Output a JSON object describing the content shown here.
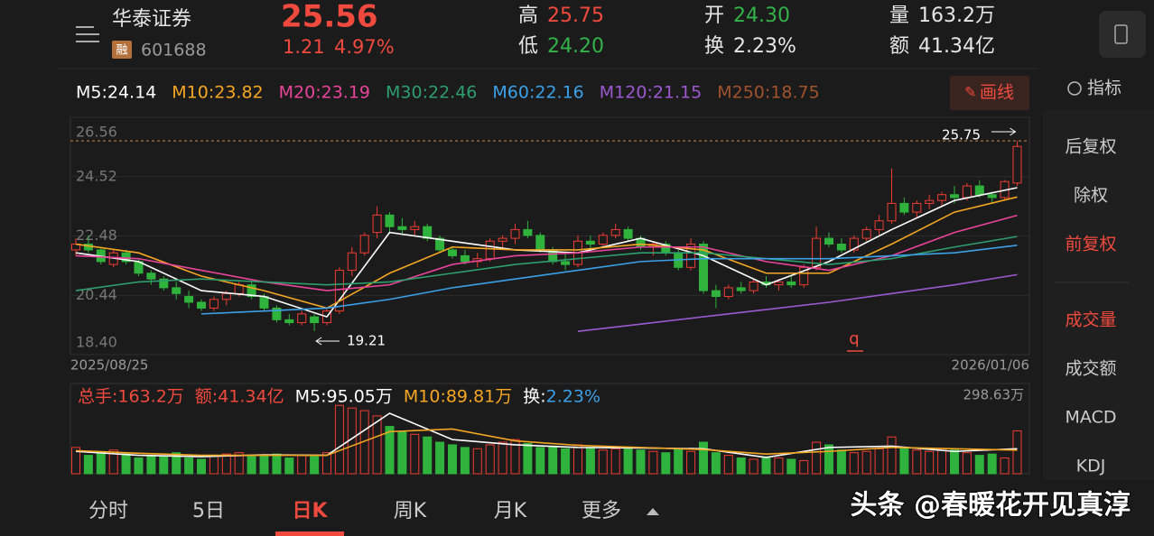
{
  "header": {
    "name": "华泰证券",
    "badge": "融",
    "code": "601688",
    "price": "25.56",
    "change": "1.21",
    "change_pct": "4.97%",
    "stats": [
      {
        "label": "高",
        "value": "25.75",
        "color": "#f04a3e"
      },
      {
        "label": "低",
        "value": "24.20",
        "color": "#33b24a"
      },
      {
        "label": "开",
        "value": "24.30",
        "color": "#33b24a"
      },
      {
        "label": "换",
        "value": "2.23%",
        "color": "#e6e6e6"
      },
      {
        "label": "量",
        "value": "163.2万",
        "color": "#e6e6e6"
      },
      {
        "label": "额",
        "value": "41.34亿",
        "color": "#e6e6e6"
      }
    ]
  },
  "toolbar": {
    "draw_button": "画线",
    "indicator": "指标"
  },
  "sidebar": [
    {
      "label": "后复权",
      "active": false
    },
    {
      "label": "除权",
      "active": false
    },
    {
      "label": "前复权",
      "active": true
    },
    {
      "label": "成交量",
      "active": true
    },
    {
      "label": "成交额",
      "active": false
    },
    {
      "label": "MACD",
      "active": false
    },
    {
      "label": "KDJ",
      "active": false
    }
  ],
  "tabs": [
    {
      "label": "分时",
      "active": false
    },
    {
      "label": "5日",
      "active": false
    },
    {
      "label": "日K",
      "active": true
    },
    {
      "label": "周K",
      "active": false
    },
    {
      "label": "月K",
      "active": false
    },
    {
      "label": "更多",
      "active": false
    }
  ],
  "watermark": "头条 @春暖花开见真淳",
  "chart_data": [
    {
      "type": "candlestick",
      "up_color": "#f03c32",
      "down_color": "#2fb33c",
      "legend_extra": [
        {
          "label": "M250:18.75",
          "color": "#a0522d"
        }
      ],
      "ylim": [
        18.4,
        26.56
      ],
      "yticks": [
        26.56,
        24.52,
        22.48,
        20.44,
        {
          "value": 18.4,
          "label": "18.40"
        }
      ],
      "x_labels": [
        "2025/08/25",
        "2026/01/06"
      ],
      "high_label": 25.75,
      "low_label": 19.21,
      "ohlc": [
        [
          22.0,
          22.4,
          21.8,
          22.2
        ],
        [
          22.2,
          22.5,
          21.9,
          22.0
        ],
        [
          22.0,
          22.1,
          21.5,
          21.6
        ],
        [
          21.5,
          22.0,
          21.4,
          21.9
        ],
        [
          21.9,
          22.0,
          21.5,
          21.6
        ],
        [
          21.6,
          21.7,
          21.1,
          21.2
        ],
        [
          21.2,
          21.3,
          20.8,
          21.0
        ],
        [
          21.0,
          21.1,
          20.6,
          20.7
        ],
        [
          20.7,
          20.9,
          20.3,
          20.5
        ],
        [
          20.4,
          20.6,
          20.0,
          20.2
        ],
        [
          20.2,
          20.3,
          19.9,
          20.0
        ],
        [
          20.0,
          20.4,
          19.9,
          20.3
        ],
        [
          20.3,
          20.6,
          20.1,
          20.5
        ],
        [
          20.5,
          20.9,
          20.4,
          20.8
        ],
        [
          20.8,
          20.9,
          20.3,
          20.4
        ],
        [
          20.4,
          20.5,
          19.9,
          20.0
        ],
        [
          20.0,
          20.1,
          19.5,
          19.6
        ],
        [
          19.6,
          19.8,
          19.4,
          19.5
        ],
        [
          19.5,
          19.9,
          19.4,
          19.8
        ],
        [
          19.7,
          19.8,
          19.21,
          19.5
        ],
        [
          19.5,
          20.0,
          19.4,
          19.9
        ],
        [
          19.9,
          21.4,
          19.8,
          21.3
        ],
        [
          21.3,
          22.1,
          21.1,
          21.9
        ],
        [
          21.9,
          22.6,
          21.8,
          22.5
        ],
        [
          22.6,
          23.5,
          22.4,
          23.2
        ],
        [
          23.2,
          23.3,
          22.6,
          22.8
        ],
        [
          22.8,
          23.1,
          22.5,
          22.7
        ],
        [
          22.7,
          23.0,
          22.5,
          22.8
        ],
        [
          22.8,
          22.9,
          22.3,
          22.4
        ],
        [
          22.4,
          22.5,
          21.9,
          22.0
        ],
        [
          22.0,
          22.1,
          21.7,
          21.8
        ],
        [
          21.8,
          22.0,
          21.5,
          21.6
        ],
        [
          21.6,
          21.9,
          21.4,
          21.7
        ],
        [
          21.7,
          22.4,
          21.6,
          22.3
        ],
        [
          22.3,
          22.5,
          22.0,
          22.4
        ],
        [
          22.4,
          22.9,
          22.2,
          22.7
        ],
        [
          22.7,
          23.0,
          22.4,
          22.5
        ],
        [
          22.5,
          22.6,
          21.9,
          22.0
        ],
        [
          22.0,
          22.1,
          21.5,
          21.6
        ],
        [
          21.6,
          21.9,
          21.3,
          21.5
        ],
        [
          21.5,
          22.5,
          21.4,
          22.3
        ],
        [
          22.3,
          22.5,
          22.0,
          22.2
        ],
        [
          22.2,
          22.6,
          22.1,
          22.5
        ],
        [
          22.5,
          22.9,
          22.4,
          22.7
        ],
        [
          22.7,
          22.8,
          22.3,
          22.4
        ],
        [
          22.4,
          22.5,
          22.0,
          22.1
        ],
        [
          22.1,
          22.3,
          21.8,
          22.2
        ],
        [
          22.2,
          22.3,
          21.8,
          21.9
        ],
        [
          21.9,
          22.0,
          21.3,
          21.4
        ],
        [
          21.4,
          22.4,
          21.3,
          22.2
        ],
        [
          22.2,
          22.3,
          20.5,
          20.6
        ],
        [
          20.6,
          20.8,
          20.0,
          20.4
        ],
        [
          20.4,
          20.8,
          20.3,
          20.7
        ],
        [
          20.7,
          20.9,
          20.5,
          20.6
        ],
        [
          20.6,
          21.0,
          20.5,
          20.9
        ],
        [
          20.9,
          21.1,
          20.7,
          20.8
        ],
        [
          20.8,
          21.0,
          20.6,
          20.9
        ],
        [
          20.9,
          21.1,
          20.7,
          20.8
        ],
        [
          20.8,
          21.5,
          20.7,
          21.4
        ],
        [
          21.4,
          22.8,
          21.3,
          22.4
        ],
        [
          22.4,
          22.6,
          22.1,
          22.2
        ],
        [
          22.2,
          22.4,
          21.9,
          22.0
        ],
        [
          22.0,
          22.5,
          21.9,
          22.4
        ],
        [
          22.4,
          22.8,
          22.3,
          22.7
        ],
        [
          22.7,
          23.2,
          22.5,
          23.0
        ],
        [
          23.0,
          24.8,
          22.9,
          23.6
        ],
        [
          23.6,
          23.8,
          23.2,
          23.3
        ],
        [
          23.3,
          23.7,
          23.1,
          23.6
        ],
        [
          23.6,
          23.9,
          23.4,
          23.7
        ],
        [
          23.7,
          24.0,
          23.5,
          23.9
        ],
        [
          23.9,
          24.2,
          23.6,
          23.8
        ],
        [
          23.8,
          24.3,
          23.7,
          24.2
        ],
        [
          24.2,
          24.4,
          23.8,
          23.9
        ],
        [
          23.9,
          24.0,
          23.6,
          23.8
        ],
        [
          23.8,
          24.4,
          23.7,
          24.35
        ],
        [
          24.3,
          25.75,
          24.2,
          25.56
        ]
      ],
      "series": [
        {
          "name": "M5:24.14",
          "color": "#ffffff",
          "x": [
            0,
            5,
            10,
            15,
            20,
            25,
            30,
            35,
            40,
            45,
            50,
            55,
            60,
            65,
            70,
            75
          ],
          "values": [
            21.9,
            21.6,
            20.6,
            20.4,
            19.7,
            22.6,
            22.3,
            22.0,
            21.9,
            22.4,
            21.8,
            20.8,
            21.6,
            22.7,
            23.7,
            24.14
          ]
        },
        {
          "name": "M10:23.82",
          "color": "#f5a623",
          "x": [
            0,
            5,
            10,
            15,
            20,
            25,
            30,
            35,
            40,
            45,
            50,
            55,
            60,
            65,
            70,
            75
          ],
          "values": [
            22.2,
            21.9,
            21.1,
            20.6,
            20.0,
            21.2,
            22.1,
            22.0,
            22.0,
            22.2,
            22.0,
            21.2,
            21.2,
            22.2,
            23.3,
            23.82
          ]
        },
        {
          "name": "M20:23.19",
          "color": "#e8459a",
          "x": [
            0,
            5,
            10,
            15,
            20,
            25,
            30,
            35,
            40,
            45,
            50,
            55,
            60,
            65,
            70,
            75
          ],
          "values": [
            21.8,
            21.7,
            21.3,
            20.9,
            20.6,
            20.8,
            21.5,
            21.8,
            21.9,
            22.1,
            22.1,
            21.6,
            21.3,
            21.8,
            22.6,
            23.19
          ]
        },
        {
          "name": "M30:22.46",
          "color": "#2e9e6e",
          "x": [
            0,
            5,
            10,
            15,
            20,
            25,
            30,
            35,
            40,
            45,
            50,
            55,
            60,
            65,
            70,
            75
          ],
          "values": [
            20.6,
            20.9,
            21.0,
            20.9,
            20.8,
            20.9,
            21.2,
            21.5,
            21.7,
            21.9,
            21.9,
            21.7,
            21.5,
            21.7,
            22.1,
            22.46
          ]
        },
        {
          "name": "M60:22.16",
          "color": "#3ca0e8",
          "x": [
            0,
            5,
            10,
            15,
            20,
            25,
            30,
            35,
            40,
            45,
            50,
            55,
            60,
            65,
            70,
            75
          ],
          "values": [
            null,
            null,
            19.8,
            19.9,
            20.0,
            20.3,
            20.7,
            21.0,
            21.3,
            21.6,
            21.7,
            21.7,
            21.7,
            21.8,
            21.9,
            22.16
          ]
        },
        {
          "name": "M120:21.15",
          "color": "#9b59d0",
          "x": [
            40,
            45,
            50,
            55,
            60,
            65,
            70,
            75
          ],
          "values": [
            19.2,
            19.45,
            19.7,
            19.95,
            20.2,
            20.5,
            20.8,
            21.15
          ]
        }
      ]
    },
    {
      "type": "bar",
      "summary": [
        {
          "text": "总手:163.2万",
          "color": "#f04a3e"
        },
        {
          "text": "额:41.34亿",
          "color": "#f04a3e"
        },
        {
          "text": "M5:95.05万",
          "color": "#ffffff"
        },
        {
          "text": "M10:89.81万",
          "color": "#f5a623"
        },
        {
          "text": "换:",
          "color": "#ffffff"
        },
        {
          "text": "2.23%",
          "color": "#3ca0e8"
        }
      ],
      "ylim": [
        0,
        298.63
      ],
      "yticks": [
        {
          "value": 298.63,
          "label": "298.63万"
        }
      ],
      "values": [
        100,
        70,
        80,
        90,
        75,
        60,
        70,
        65,
        80,
        60,
        55,
        70,
        75,
        80,
        65,
        70,
        75,
        60,
        70,
        65,
        80,
        260,
        250,
        240,
        220,
        180,
        160,
        150,
        140,
        120,
        110,
        100,
        95,
        110,
        120,
        130,
        115,
        100,
        105,
        95,
        110,
        100,
        90,
        95,
        100,
        90,
        85,
        80,
        95,
        85,
        120,
        80,
        70,
        60,
        55,
        65,
        60,
        55,
        50,
        120,
        110,
        90,
        80,
        85,
        95,
        140,
        100,
        90,
        85,
        95,
        90,
        80,
        70,
        75,
        60,
        163.2
      ],
      "series": [
        {
          "color": "#ffffff",
          "x": [
            0,
            5,
            10,
            15,
            20,
            25,
            30,
            35,
            40,
            45,
            50,
            55,
            60,
            65,
            70,
            75
          ],
          "values": [
            85,
            70,
            65,
            72,
            70,
            230,
            130,
            110,
            100,
            98,
            95,
            62,
            100,
            105,
            85,
            95.05
          ]
        },
        {
          "color": "#f5a623",
          "x": [
            0,
            5,
            10,
            15,
            20,
            25,
            30,
            35,
            40,
            45,
            50,
            55,
            60,
            65,
            70,
            75
          ],
          "values": [
            88,
            78,
            70,
            70,
            70,
            160,
            170,
            125,
            108,
            100,
            92,
            75,
            85,
            100,
            95,
            89.81
          ]
        }
      ]
    }
  ]
}
